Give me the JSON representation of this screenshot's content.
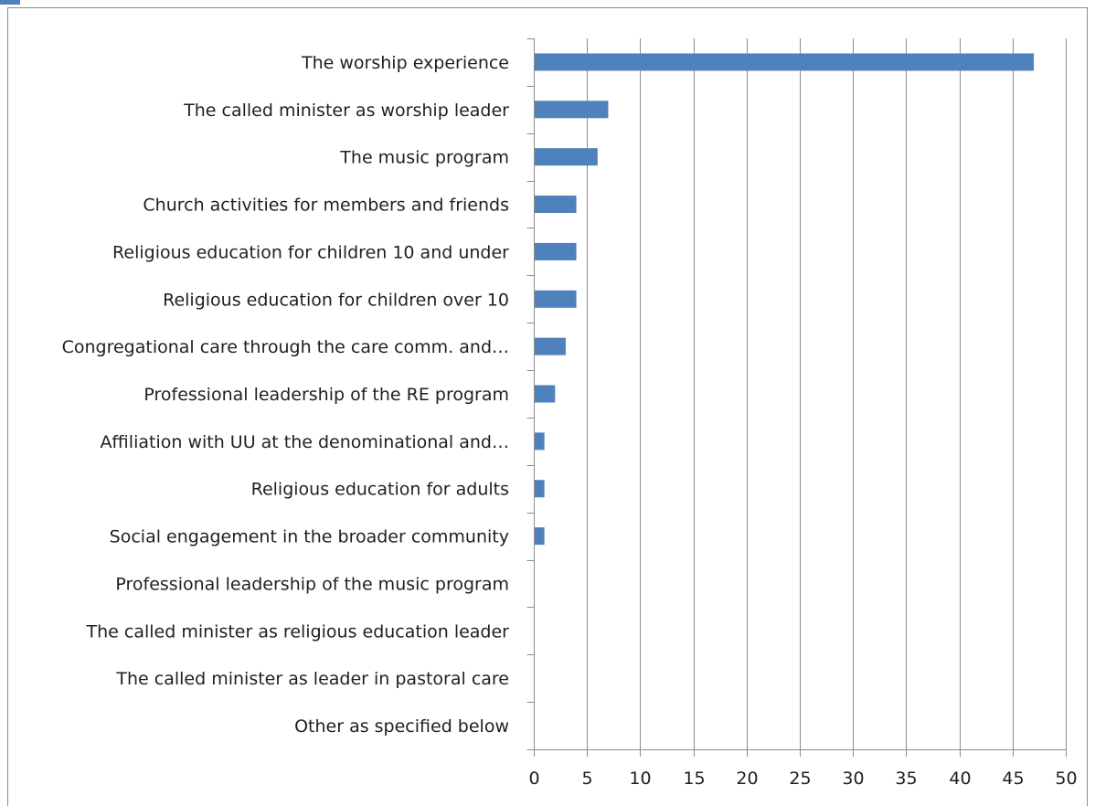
{
  "chart_data": {
    "type": "bar",
    "orientation": "horizontal",
    "categories": [
      "The worship experience",
      "The called minister as worship leader",
      "The music program",
      "Church activities for members and friends",
      "Religious education for children 10 and under",
      "Religious education for children over 10",
      "Congregational care through the care comm. and…",
      "Professional leadership of the RE program",
      "Affiliation with UU at the denominational and…",
      "Religious education for adults",
      "Social engagement in the broader community",
      "Professional leadership of the music program",
      "The called minister as religious education leader",
      "The called minister as leader in pastoral care",
      "Other as specified below"
    ],
    "values": [
      47,
      7,
      6,
      4,
      4,
      4,
      3,
      2,
      1,
      1,
      1,
      0,
      0,
      0,
      0
    ],
    "xlim": [
      0,
      50
    ],
    "xticks": [
      0,
      5,
      10,
      15,
      20,
      25,
      30,
      35,
      40,
      45,
      50
    ],
    "title": "",
    "xlabel": "",
    "ylabel": "",
    "grid": "vertical",
    "legend": "none",
    "bar_color": "#4f81bd",
    "grid_color": "#8c8c8c",
    "frame_color": "#8c8c8c"
  }
}
